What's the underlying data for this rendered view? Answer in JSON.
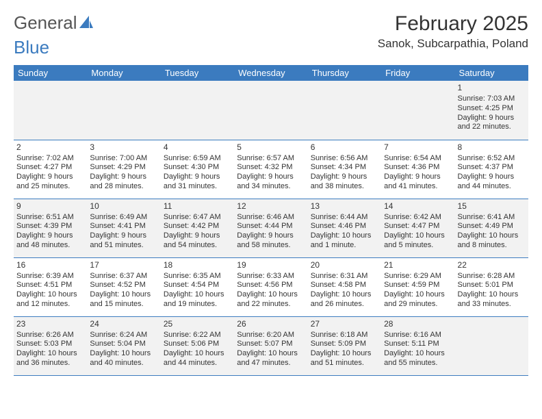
{
  "logo": {
    "part1": "General",
    "part2": "Blue"
  },
  "title": "February 2025",
  "location": "Sanok, Subcarpathia, Poland",
  "colors": {
    "header_bg": "#3b7bbf",
    "header_fg": "#ffffff",
    "row_alt_bg": "#f2f2f2",
    "row_bg": "#ffffff",
    "rule": "#3b7bbf",
    "text": "#333333"
  },
  "day_headers": [
    "Sunday",
    "Monday",
    "Tuesday",
    "Wednesday",
    "Thursday",
    "Friday",
    "Saturday"
  ],
  "weeks": [
    [
      null,
      null,
      null,
      null,
      null,
      null,
      {
        "n": "1",
        "sr": "Sunrise: 7:03 AM",
        "ss": "Sunset: 4:25 PM",
        "dl1": "Daylight: 9 hours",
        "dl2": "and 22 minutes."
      }
    ],
    [
      {
        "n": "2",
        "sr": "Sunrise: 7:02 AM",
        "ss": "Sunset: 4:27 PM",
        "dl1": "Daylight: 9 hours",
        "dl2": "and 25 minutes."
      },
      {
        "n": "3",
        "sr": "Sunrise: 7:00 AM",
        "ss": "Sunset: 4:29 PM",
        "dl1": "Daylight: 9 hours",
        "dl2": "and 28 minutes."
      },
      {
        "n": "4",
        "sr": "Sunrise: 6:59 AM",
        "ss": "Sunset: 4:30 PM",
        "dl1": "Daylight: 9 hours",
        "dl2": "and 31 minutes."
      },
      {
        "n": "5",
        "sr": "Sunrise: 6:57 AM",
        "ss": "Sunset: 4:32 PM",
        "dl1": "Daylight: 9 hours",
        "dl2": "and 34 minutes."
      },
      {
        "n": "6",
        "sr": "Sunrise: 6:56 AM",
        "ss": "Sunset: 4:34 PM",
        "dl1": "Daylight: 9 hours",
        "dl2": "and 38 minutes."
      },
      {
        "n": "7",
        "sr": "Sunrise: 6:54 AM",
        "ss": "Sunset: 4:36 PM",
        "dl1": "Daylight: 9 hours",
        "dl2": "and 41 minutes."
      },
      {
        "n": "8",
        "sr": "Sunrise: 6:52 AM",
        "ss": "Sunset: 4:37 PM",
        "dl1": "Daylight: 9 hours",
        "dl2": "and 44 minutes."
      }
    ],
    [
      {
        "n": "9",
        "sr": "Sunrise: 6:51 AM",
        "ss": "Sunset: 4:39 PM",
        "dl1": "Daylight: 9 hours",
        "dl2": "and 48 minutes."
      },
      {
        "n": "10",
        "sr": "Sunrise: 6:49 AM",
        "ss": "Sunset: 4:41 PM",
        "dl1": "Daylight: 9 hours",
        "dl2": "and 51 minutes."
      },
      {
        "n": "11",
        "sr": "Sunrise: 6:47 AM",
        "ss": "Sunset: 4:42 PM",
        "dl1": "Daylight: 9 hours",
        "dl2": "and 54 minutes."
      },
      {
        "n": "12",
        "sr": "Sunrise: 6:46 AM",
        "ss": "Sunset: 4:44 PM",
        "dl1": "Daylight: 9 hours",
        "dl2": "and 58 minutes."
      },
      {
        "n": "13",
        "sr": "Sunrise: 6:44 AM",
        "ss": "Sunset: 4:46 PM",
        "dl1": "Daylight: 10 hours",
        "dl2": "and 1 minute."
      },
      {
        "n": "14",
        "sr": "Sunrise: 6:42 AM",
        "ss": "Sunset: 4:47 PM",
        "dl1": "Daylight: 10 hours",
        "dl2": "and 5 minutes."
      },
      {
        "n": "15",
        "sr": "Sunrise: 6:41 AM",
        "ss": "Sunset: 4:49 PM",
        "dl1": "Daylight: 10 hours",
        "dl2": "and 8 minutes."
      }
    ],
    [
      {
        "n": "16",
        "sr": "Sunrise: 6:39 AM",
        "ss": "Sunset: 4:51 PM",
        "dl1": "Daylight: 10 hours",
        "dl2": "and 12 minutes."
      },
      {
        "n": "17",
        "sr": "Sunrise: 6:37 AM",
        "ss": "Sunset: 4:52 PM",
        "dl1": "Daylight: 10 hours",
        "dl2": "and 15 minutes."
      },
      {
        "n": "18",
        "sr": "Sunrise: 6:35 AM",
        "ss": "Sunset: 4:54 PM",
        "dl1": "Daylight: 10 hours",
        "dl2": "and 19 minutes."
      },
      {
        "n": "19",
        "sr": "Sunrise: 6:33 AM",
        "ss": "Sunset: 4:56 PM",
        "dl1": "Daylight: 10 hours",
        "dl2": "and 22 minutes."
      },
      {
        "n": "20",
        "sr": "Sunrise: 6:31 AM",
        "ss": "Sunset: 4:58 PM",
        "dl1": "Daylight: 10 hours",
        "dl2": "and 26 minutes."
      },
      {
        "n": "21",
        "sr": "Sunrise: 6:29 AM",
        "ss": "Sunset: 4:59 PM",
        "dl1": "Daylight: 10 hours",
        "dl2": "and 29 minutes."
      },
      {
        "n": "22",
        "sr": "Sunrise: 6:28 AM",
        "ss": "Sunset: 5:01 PM",
        "dl1": "Daylight: 10 hours",
        "dl2": "and 33 minutes."
      }
    ],
    [
      {
        "n": "23",
        "sr": "Sunrise: 6:26 AM",
        "ss": "Sunset: 5:03 PM",
        "dl1": "Daylight: 10 hours",
        "dl2": "and 36 minutes."
      },
      {
        "n": "24",
        "sr": "Sunrise: 6:24 AM",
        "ss": "Sunset: 5:04 PM",
        "dl1": "Daylight: 10 hours",
        "dl2": "and 40 minutes."
      },
      {
        "n": "25",
        "sr": "Sunrise: 6:22 AM",
        "ss": "Sunset: 5:06 PM",
        "dl1": "Daylight: 10 hours",
        "dl2": "and 44 minutes."
      },
      {
        "n": "26",
        "sr": "Sunrise: 6:20 AM",
        "ss": "Sunset: 5:07 PM",
        "dl1": "Daylight: 10 hours",
        "dl2": "and 47 minutes."
      },
      {
        "n": "27",
        "sr": "Sunrise: 6:18 AM",
        "ss": "Sunset: 5:09 PM",
        "dl1": "Daylight: 10 hours",
        "dl2": "and 51 minutes."
      },
      {
        "n": "28",
        "sr": "Sunrise: 6:16 AM",
        "ss": "Sunset: 5:11 PM",
        "dl1": "Daylight: 10 hours",
        "dl2": "and 55 minutes."
      },
      null
    ]
  ]
}
